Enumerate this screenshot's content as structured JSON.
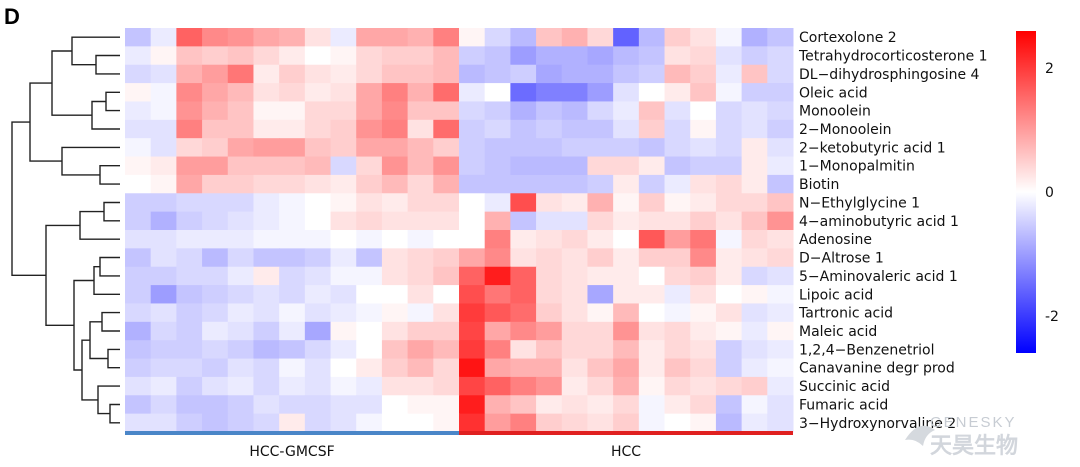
{
  "panel_label": "D",
  "chart_data": {
    "type": "heatmap",
    "rows": [
      "Cortexolone 2",
      "Tetrahydrocorticosterone 1",
      "DL−dihydrosphingosine 4",
      "Oleic acid",
      "Monoolein",
      "2−Monoolein",
      "2−ketobutyric acid 1",
      "1−Monopalmitin",
      "Biotin",
      "N−Ethylglycine 1",
      "4−aminobutyric acid 1",
      "Adenosine",
      "D−Altrose 1",
      "5−Aminovaleric acid 1",
      "Lipoic acid",
      "Tartronic acid",
      "Maleic acid",
      "1,2,4−Benzenetriol",
      "Canavanine degr prod",
      "Succinic acid",
      "Fumaric acid",
      "3−Hydroxynorvaline 2"
    ],
    "groups": [
      {
        "name": "HCC-GMCSF",
        "n_samples": 13,
        "color": "#4a86c8"
      },
      {
        "name": "HCC",
        "n_samples": 13,
        "color": "#e02020"
      }
    ],
    "values": [
      [
        -0.6,
        -0.2,
        1.6,
        1.2,
        1.1,
        0.9,
        0.8,
        0.3,
        -0.2,
        0.9,
        0.9,
        0.8,
        1.3,
        0.1,
        -0.4,
        -0.7,
        0.6,
        0.8,
        0.4,
        -1.6,
        -0.7,
        0.5,
        0.3,
        -0.1,
        -0.8,
        -0.6
      ],
      [
        -0.2,
        0.1,
        0.6,
        0.5,
        0.6,
        0.4,
        0.2,
        0.0,
        0.1,
        0.4,
        0.5,
        0.5,
        0.7,
        -0.5,
        -0.6,
        -1.0,
        -0.8,
        -0.8,
        -0.9,
        -0.7,
        -0.6,
        0.3,
        0.4,
        -0.3,
        -0.5,
        -0.4
      ],
      [
        -0.4,
        -0.3,
        0.8,
        1.0,
        1.4,
        0.2,
        0.5,
        0.3,
        0.2,
        0.4,
        0.6,
        0.6,
        0.7,
        -0.7,
        -0.6,
        -0.5,
        -0.9,
        -0.8,
        -0.8,
        -0.6,
        -0.5,
        0.7,
        0.5,
        -0.2,
        0.6,
        -0.4
      ],
      [
        0.1,
        -0.1,
        1.2,
        0.9,
        0.7,
        0.3,
        0.4,
        0.2,
        0.3,
        0.9,
        1.3,
        0.8,
        1.5,
        -0.2,
        0.0,
        -1.5,
        -1.3,
        -1.3,
        -1.0,
        -0.3,
        0.0,
        0.2,
        0.6,
        -0.1,
        -0.5,
        -0.5
      ],
      [
        -0.2,
        -0.1,
        1.1,
        0.8,
        0.6,
        0.1,
        0.1,
        0.4,
        0.4,
        0.9,
        1.2,
        0.6,
        0.6,
        -0.4,
        -0.5,
        -0.8,
        -0.6,
        -0.7,
        -0.4,
        -0.2,
        0.6,
        -0.3,
        0.0,
        -0.4,
        -0.3,
        -0.4
      ],
      [
        -0.3,
        -0.3,
        1.3,
        0.6,
        0.6,
        0.2,
        0.2,
        0.4,
        0.5,
        1.1,
        1.3,
        0.3,
        1.5,
        -0.5,
        -0.4,
        -0.6,
        -0.5,
        -0.6,
        -0.6,
        -0.3,
        0.5,
        -0.4,
        0.1,
        -0.4,
        -0.3,
        -0.5
      ],
      [
        -0.1,
        -0.3,
        0.4,
        0.5,
        0.9,
        1.0,
        1.0,
        0.6,
        0.5,
        0.9,
        0.9,
        0.7,
        0.5,
        -0.5,
        -0.6,
        -0.6,
        -0.6,
        -0.5,
        -0.5,
        -0.5,
        -0.6,
        -0.4,
        -0.3,
        -0.4,
        0.2,
        -0.3
      ],
      [
        0.1,
        0.2,
        1.0,
        1.0,
        0.6,
        0.6,
        0.6,
        0.7,
        -0.4,
        0.4,
        1.1,
        0.7,
        1.1,
        -0.5,
        -0.6,
        -0.7,
        -0.7,
        -0.7,
        0.4,
        0.4,
        0.2,
        -0.6,
        -0.5,
        -0.5,
        0.2,
        -0.2
      ],
      [
        0.0,
        0.1,
        0.9,
        0.5,
        0.5,
        0.4,
        0.4,
        0.3,
        0.2,
        0.5,
        0.7,
        0.4,
        0.8,
        -0.6,
        -0.6,
        -0.6,
        -0.6,
        -0.6,
        -0.5,
        0.2,
        -0.5,
        -0.2,
        0.3,
        0.4,
        0.2,
        -0.6
      ],
      [
        -0.5,
        -0.5,
        -0.4,
        -0.4,
        -0.4,
        -0.2,
        -0.1,
        0.0,
        0.1,
        0.3,
        0.2,
        0.4,
        0.4,
        0.0,
        -0.2,
        1.8,
        0.3,
        0.2,
        0.8,
        0.1,
        0.5,
        0.1,
        0.2,
        0.4,
        0.4,
        0.6
      ],
      [
        -0.5,
        -0.8,
        -0.5,
        -0.4,
        -0.3,
        -0.2,
        -0.1,
        0.0,
        0.3,
        0.4,
        0.3,
        0.3,
        0.3,
        0.0,
        0.8,
        -0.6,
        -0.3,
        -0.3,
        0.4,
        0.2,
        0.3,
        0.3,
        0.5,
        0.3,
        0.6,
        1.1
      ],
      [
        -0.3,
        -0.3,
        -0.2,
        -0.2,
        -0.2,
        -0.1,
        -0.1,
        -0.1,
        0.0,
        -0.1,
        0.0,
        -0.1,
        0.0,
        0.0,
        1.3,
        0.2,
        0.3,
        0.4,
        0.2,
        0.0,
        1.7,
        1.0,
        1.4,
        -0.1,
        0.4,
        0.3
      ],
      [
        -0.6,
        -0.3,
        -0.4,
        -0.7,
        -0.4,
        -0.6,
        -0.6,
        -0.5,
        -0.2,
        -0.6,
        0.3,
        0.4,
        0.5,
        0.9,
        1.2,
        0.3,
        0.4,
        0.3,
        0.5,
        0.2,
        0.5,
        0.5,
        1.2,
        0.2,
        0.3,
        0.4
      ],
      [
        -0.5,
        -0.5,
        -0.4,
        -0.4,
        -0.2,
        0.2,
        -0.4,
        -0.3,
        -0.1,
        -0.1,
        0.3,
        0.4,
        0.6,
        1.6,
        2.3,
        1.6,
        0.4,
        0.3,
        0.2,
        0.2,
        0.0,
        0.4,
        0.5,
        0.2,
        -0.4,
        -0.3
      ],
      [
        -0.5,
        -1.0,
        -0.6,
        -0.5,
        -0.4,
        -0.3,
        -0.4,
        -0.2,
        -0.3,
        0.0,
        0.0,
        0.3,
        0.0,
        1.8,
        1.4,
        1.6,
        0.4,
        0.3,
        -0.9,
        0.2,
        0.2,
        -0.2,
        0.3,
        0.0,
        0.1,
        -0.1
      ],
      [
        -0.4,
        -0.3,
        -0.5,
        -0.4,
        -0.2,
        -0.3,
        -0.1,
        -0.3,
        -0.2,
        -0.1,
        0.1,
        -0.1,
        0.3,
        2.0,
        1.7,
        1.5,
        0.5,
        0.3,
        0.1,
        0.7,
        0.0,
        -0.1,
        0.1,
        0.3,
        -0.3,
        -0.2
      ],
      [
        -0.8,
        -0.4,
        -0.5,
        -0.2,
        -0.3,
        -0.5,
        -0.2,
        -0.9,
        0.1,
        0.0,
        0.3,
        0.5,
        0.5,
        1.9,
        0.9,
        1.2,
        1.0,
        0.4,
        0.4,
        1.1,
        0.3,
        0.4,
        0.2,
        0.1,
        -0.2,
        0.1
      ],
      [
        -0.6,
        -0.5,
        -0.5,
        -0.4,
        -0.5,
        -0.7,
        -0.6,
        -0.4,
        -0.2,
        0.0,
        0.6,
        0.9,
        0.7,
        2.0,
        1.3,
        0.3,
        0.6,
        0.4,
        0.4,
        0.7,
        0.2,
        0.4,
        0.3,
        -0.5,
        -0.3,
        -0.2
      ],
      [
        -0.5,
        -0.4,
        -0.4,
        -0.5,
        -0.3,
        -0.4,
        -0.1,
        -0.3,
        0.0,
        0.2,
        0.5,
        0.7,
        0.4,
        2.4,
        0.9,
        0.8,
        0.8,
        0.3,
        0.6,
        0.9,
        0.2,
        0.6,
        0.4,
        -0.5,
        -0.2,
        -0.1
      ],
      [
        -0.3,
        -0.2,
        -0.5,
        -0.3,
        -0.2,
        -0.4,
        -0.2,
        -0.3,
        -0.1,
        -0.2,
        0.3,
        0.3,
        0.4,
        1.9,
        1.6,
        1.3,
        1.1,
        0.2,
        0.4,
        0.8,
        0.1,
        0.4,
        0.3,
        0.4,
        0.5,
        -0.2
      ],
      [
        -0.6,
        -0.4,
        -0.6,
        -0.6,
        -0.5,
        -0.3,
        -0.4,
        -0.4,
        -0.3,
        -0.3,
        0.0,
        0.1,
        0.1,
        2.3,
        0.8,
        0.6,
        0.2,
        0.3,
        0.2,
        0.4,
        -0.1,
        0.2,
        0.4,
        -0.6,
        -0.1,
        -0.3
      ],
      [
        -0.3,
        -0.3,
        -0.5,
        -0.6,
        -0.5,
        -0.4,
        0.2,
        -0.4,
        -0.3,
        -0.1,
        0.0,
        0.0,
        0.1,
        2.1,
        1.0,
        1.3,
        0.5,
        0.4,
        0.3,
        0.5,
        -0.1,
        0.0,
        0.1,
        -0.7,
        -0.2,
        -0.3
      ]
    ],
    "color_scale": {
      "min": -2.6,
      "max": 2.6,
      "low_color": "#0000ff",
      "mid_color": "#ffffff",
      "high_color": "#ff0000",
      "ticks": [
        2,
        0,
        -2
      ],
      "tick_labels": [
        "2",
        "0",
        "-2"
      ]
    },
    "row_dendrogram": true
  },
  "watermark": {
    "en": "GENESKY",
    "cn": "天昊生物"
  }
}
